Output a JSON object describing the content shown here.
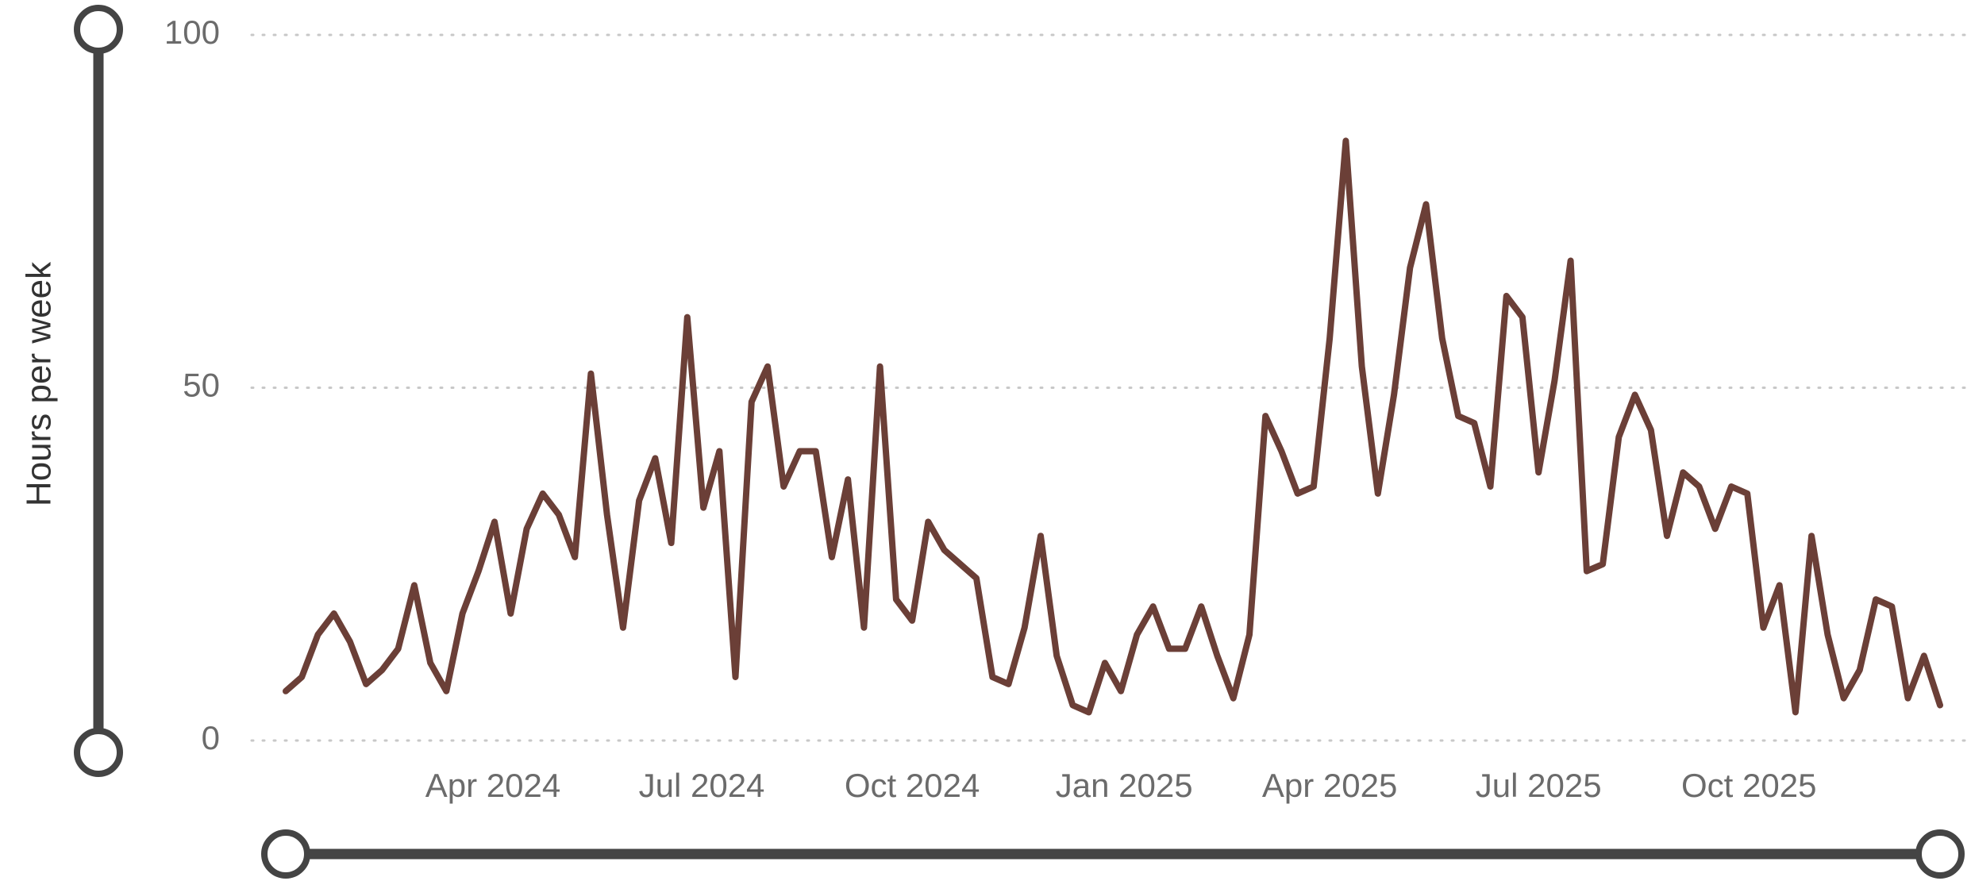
{
  "chart_data": {
    "type": "line",
    "y_label": "Hours per week",
    "values": [
      7,
      9,
      15,
      18,
      14,
      8,
      10,
      13,
      22,
      11,
      7,
      18,
      24,
      31,
      18,
      30,
      35,
      32,
      26,
      52,
      32,
      16,
      34,
      40,
      28,
      60,
      33,
      41,
      9,
      48,
      53,
      36,
      41,
      41,
      26,
      37,
      16,
      53,
      20,
      17,
      31,
      27,
      25,
      23,
      9,
      8,
      16,
      29,
      12,
      5,
      4,
      11,
      7,
      15,
      19,
      13,
      13,
      19,
      12,
      6,
      15,
      46,
      41,
      35,
      36,
      57,
      85,
      53,
      35,
      49,
      67,
      76,
      57,
      46,
      45,
      36,
      63,
      60,
      38,
      51,
      68,
      24,
      25,
      43,
      49,
      44,
      29,
      38,
      36,
      30,
      36,
      35,
      16,
      22,
      4,
      29,
      15,
      6,
      10,
      20,
      19,
      6,
      12,
      5
    ],
    "color": "#6b3f37",
    "xlim": [
      0,
      103
    ],
    "xticks": [
      {
        "value": 12.9,
        "label": "Apr 2024"
      },
      {
        "value": 25.9,
        "label": "Jul 2024"
      },
      {
        "value": 39.0,
        "label": "Oct 2024"
      },
      {
        "value": 52.2,
        "label": "Jan 2025"
      },
      {
        "value": 65.0,
        "label": "Apr 2025"
      },
      {
        "value": 78.0,
        "label": "Jul 2025"
      },
      {
        "value": 91.1,
        "label": "Oct 2025"
      }
    ],
    "ylim": [
      0,
      100
    ],
    "yticks": [
      0,
      50,
      100
    ],
    "grid": true
  }
}
